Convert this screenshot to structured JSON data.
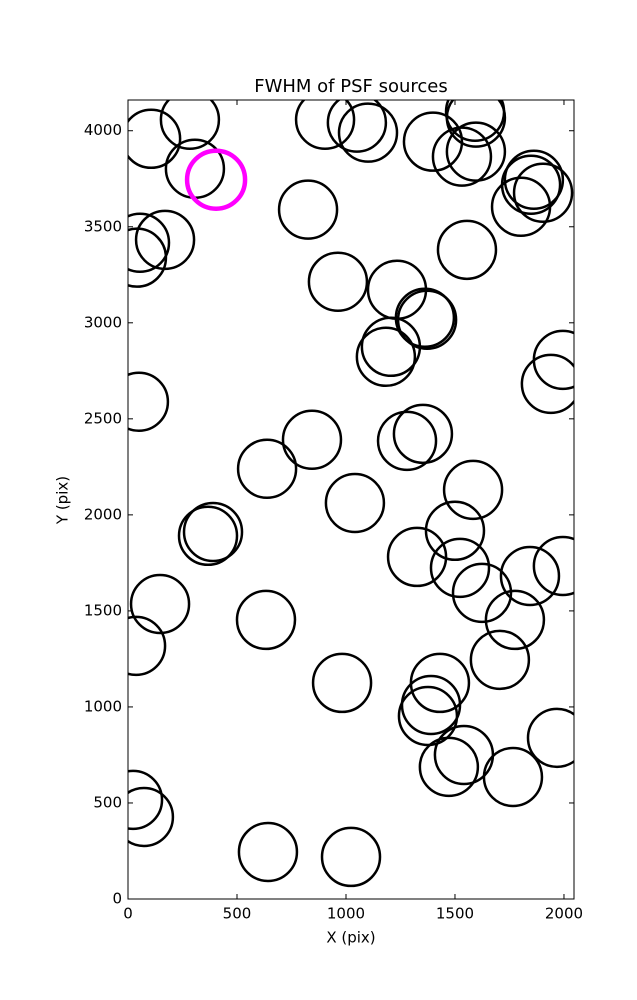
{
  "chart_data": {
    "type": "scatter",
    "title": "FWHM of PSF sources",
    "x_label": "X (pix)",
    "y_label": "Y (pix)",
    "xlim": [
      0,
      2046
    ],
    "ylim": [
      0,
      4160
    ],
    "xticks": [
      0,
      500,
      1000,
      1500,
      2000
    ],
    "yticks": [
      0,
      500,
      1000,
      1500,
      2000,
      2500,
      3000,
      3500,
      4000
    ],
    "series": [
      {
        "color": "#000000",
        "marker": "open-circle",
        "x": [
          106,
          284,
          307,
          55,
          170,
          41,
          50,
          826,
          904,
          1050,
          1101,
          963,
          1399,
          1532,
          1592,
          1596,
          1596,
          1555,
          1862,
          1849,
          1904,
          1803,
          1234,
          1362,
          1372,
          1206,
          1183,
          1995,
          1940,
          844,
          1280,
          1353,
          638,
          1041,
          1583,
          1500,
          367,
          390,
          1326,
          1523,
          1624,
          1844,
          1995,
          147,
          37,
          633,
          1775,
          1706,
          982,
          1431,
          1390,
          1376,
          1541,
          1472,
          1766,
          1968,
          23,
          73,
          642,
          1023
        ],
        "y": [
          3958,
          4057,
          3802,
          3417,
          3432,
          3339,
          2589,
          3589,
          4057,
          4042,
          3990,
          3214,
          3943,
          3865,
          4099,
          4068,
          3891,
          3380,
          3745,
          3719,
          3677,
          3604,
          3172,
          3026,
          3016,
          2875,
          2823,
          2807,
          2682,
          2391,
          2385,
          2422,
          2240,
          2062,
          2130,
          1917,
          1891,
          1911,
          1781,
          1724,
          1594,
          1682,
          1734,
          1536,
          1318,
          1453,
          1453,
          1245,
          1125,
          1125,
          1010,
          953,
          750,
          688,
          635,
          839,
          516,
          427,
          245,
          219
        ]
      },
      {
        "color": "#ff00ff",
        "marker": "open-circle",
        "x": [
          404
        ],
        "y": [
          3745
        ]
      }
    ]
  }
}
